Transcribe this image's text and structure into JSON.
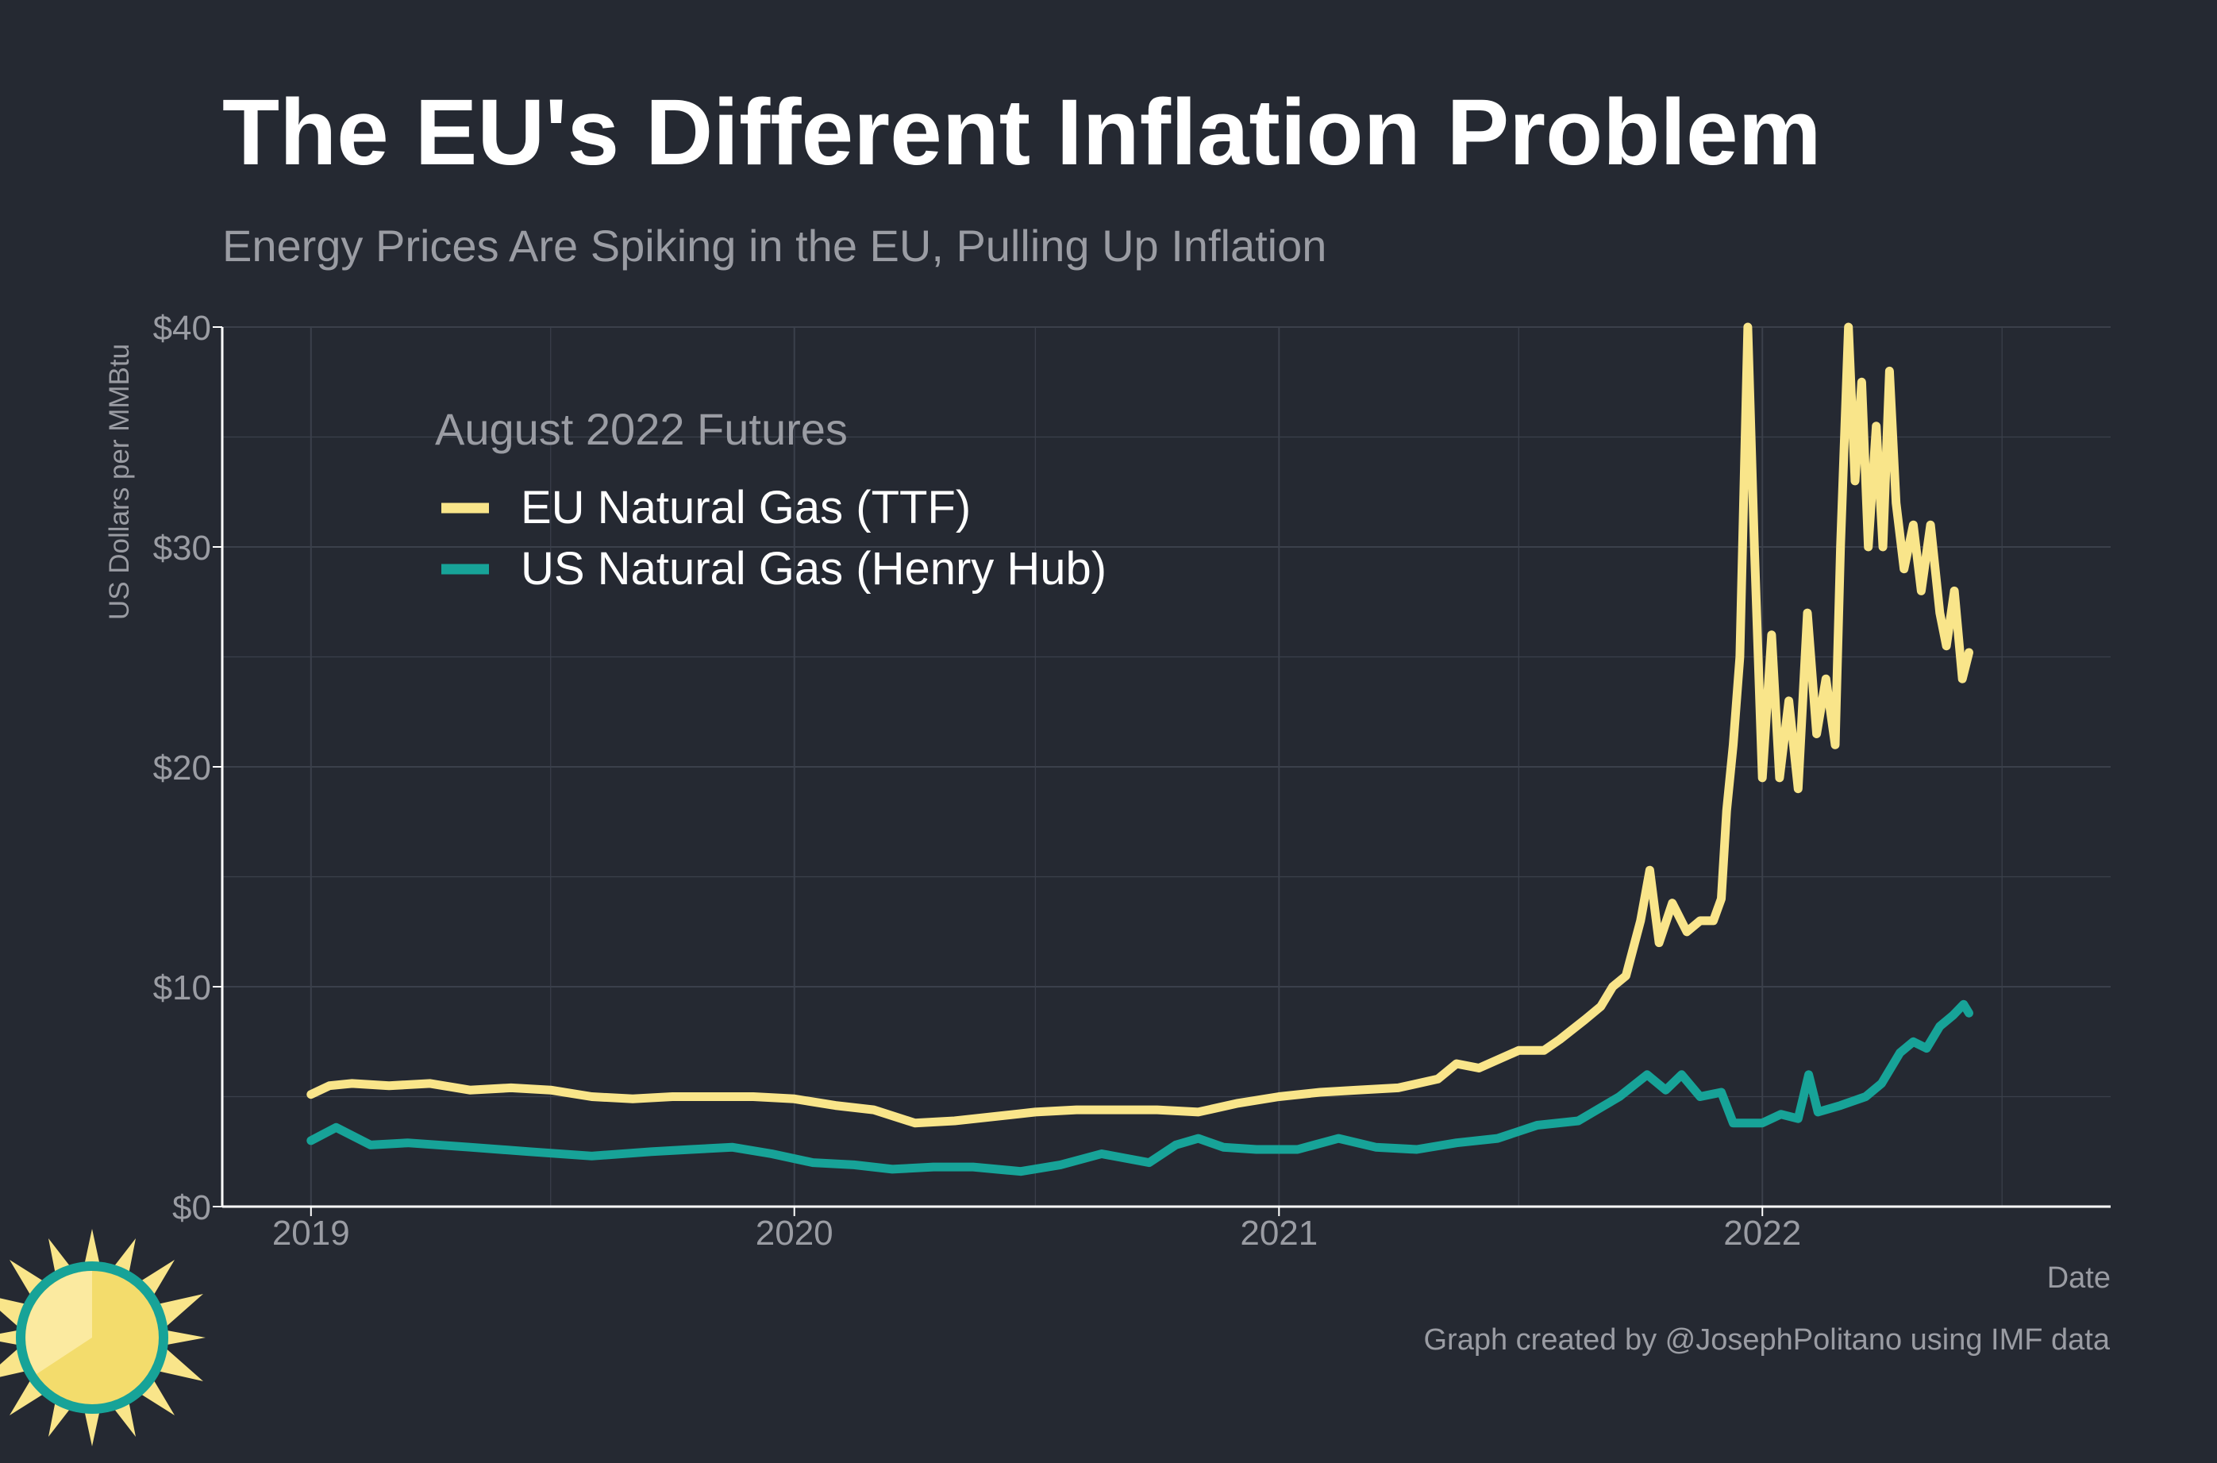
{
  "title": "The EU's Different Inflation Problem",
  "subtitle": "Energy Prices Are Spiking in the EU, Pulling Up Inflation",
  "caption": "Graph created by @JosephPolitano using IMF data",
  "chart_data": {
    "type": "line",
    "title": "The EU's Different Inflation Problem",
    "subtitle": "Energy Prices Are Spiking in the EU, Pulling Up Inflation",
    "xlabel": "Date",
    "ylabel": "US Dollars per MMBtu",
    "xlim": [
      "2018-10-26",
      "2022-09-21"
    ],
    "ylim": [
      0,
      40
    ],
    "x_ticks": [
      "2019",
      "2020",
      "2021",
      "2022"
    ],
    "y_ticks": [
      "$0",
      "$10",
      "$20",
      "$30",
      "$40"
    ],
    "grid": true,
    "legend": {
      "title": "August 2022 Futures",
      "placement": "top-left"
    },
    "colors": {
      "background": "#252932",
      "eu": "#f9e58a",
      "us": "#17a398",
      "grid": "#3b404b",
      "text": "#9a9ca3"
    },
    "series": [
      {
        "name": "EU Natural Gas (TTF)",
        "points": [
          [
            "2019-01-01",
            5.1
          ],
          [
            "2019-01-15",
            5.5
          ],
          [
            "2019-02-01",
            5.6
          ],
          [
            "2019-03-01",
            5.5
          ],
          [
            "2019-04-01",
            5.6
          ],
          [
            "2019-05-01",
            5.3
          ],
          [
            "2019-06-01",
            5.4
          ],
          [
            "2019-07-01",
            5.3
          ],
          [
            "2019-08-01",
            5.0
          ],
          [
            "2019-09-01",
            4.9
          ],
          [
            "2019-10-01",
            5.0
          ],
          [
            "2019-11-01",
            5.0
          ],
          [
            "2019-12-01",
            5.0
          ],
          [
            "2020-01-01",
            4.9
          ],
          [
            "2020-02-01",
            4.6
          ],
          [
            "2020-03-01",
            4.4
          ],
          [
            "2020-04-01",
            3.8
          ],
          [
            "2020-05-01",
            3.9
          ],
          [
            "2020-06-01",
            4.1
          ],
          [
            "2020-07-01",
            4.3
          ],
          [
            "2020-08-01",
            4.4
          ],
          [
            "2020-09-01",
            4.4
          ],
          [
            "2020-10-01",
            4.4
          ],
          [
            "2020-11-01",
            4.3
          ],
          [
            "2020-12-01",
            4.7
          ],
          [
            "2021-01-01",
            5.0
          ],
          [
            "2021-02-01",
            5.2
          ],
          [
            "2021-03-01",
            5.3
          ],
          [
            "2021-04-01",
            5.4
          ],
          [
            "2021-05-01",
            5.8
          ],
          [
            "2021-05-15",
            6.5
          ],
          [
            "2021-06-01",
            6.3
          ],
          [
            "2021-07-01",
            7.1
          ],
          [
            "2021-07-20",
            7.1
          ],
          [
            "2021-08-01",
            7.6
          ],
          [
            "2021-08-20",
            8.5
          ],
          [
            "2021-09-01",
            9.1
          ],
          [
            "2021-09-10",
            10.0
          ],
          [
            "2021-09-20",
            10.5
          ],
          [
            "2021-10-01",
            13.0
          ],
          [
            "2021-10-08",
            15.3
          ],
          [
            "2021-10-15",
            12.0
          ],
          [
            "2021-10-25",
            13.8
          ],
          [
            "2021-11-05",
            12.5
          ],
          [
            "2021-11-15",
            13.0
          ],
          [
            "2021-11-25",
            13.0
          ],
          [
            "2021-12-01",
            14.0
          ],
          [
            "2021-12-05",
            18.0
          ],
          [
            "2021-12-10",
            21.0
          ],
          [
            "2021-12-15",
            25.0
          ],
          [
            "2021-12-21",
            40.0
          ],
          [
            "2021-12-26",
            30.0
          ],
          [
            "2022-01-01",
            19.5
          ],
          [
            "2022-01-08",
            26.0
          ],
          [
            "2022-01-14",
            19.5
          ],
          [
            "2022-01-21",
            23.0
          ],
          [
            "2022-01-28",
            19.0
          ],
          [
            "2022-02-04",
            27.0
          ],
          [
            "2022-02-11",
            21.5
          ],
          [
            "2022-02-18",
            24.0
          ],
          [
            "2022-02-25",
            21.0
          ],
          [
            "2022-03-01",
            30.0
          ],
          [
            "2022-03-07",
            40.0
          ],
          [
            "2022-03-12",
            33.0
          ],
          [
            "2022-03-17",
            37.5
          ],
          [
            "2022-03-22",
            30.0
          ],
          [
            "2022-03-28",
            35.5
          ],
          [
            "2022-04-02",
            30.0
          ],
          [
            "2022-04-07",
            38.0
          ],
          [
            "2022-04-12",
            32.0
          ],
          [
            "2022-04-18",
            29.0
          ],
          [
            "2022-04-25",
            31.0
          ],
          [
            "2022-05-01",
            28.0
          ],
          [
            "2022-05-08",
            31.0
          ],
          [
            "2022-05-15",
            27.0
          ],
          [
            "2022-05-20",
            25.5
          ],
          [
            "2022-05-26",
            28.0
          ],
          [
            "2022-06-01",
            24.0
          ],
          [
            "2022-06-06",
            25.2
          ]
        ]
      },
      {
        "name": "US Natural Gas (Henry Hub)",
        "points": [
          [
            "2019-01-01",
            3.0
          ],
          [
            "2019-01-20",
            3.6
          ],
          [
            "2019-02-15",
            2.8
          ],
          [
            "2019-03-15",
            2.9
          ],
          [
            "2019-05-01",
            2.7
          ],
          [
            "2019-06-15",
            2.5
          ],
          [
            "2019-08-01",
            2.3
          ],
          [
            "2019-09-15",
            2.5
          ],
          [
            "2019-10-15",
            2.6
          ],
          [
            "2019-11-15",
            2.7
          ],
          [
            "2019-12-15",
            2.4
          ],
          [
            "2020-01-15",
            2.0
          ],
          [
            "2020-02-15",
            1.9
          ],
          [
            "2020-03-15",
            1.7
          ],
          [
            "2020-04-15",
            1.8
          ],
          [
            "2020-05-15",
            1.8
          ],
          [
            "2020-06-20",
            1.6
          ],
          [
            "2020-07-20",
            1.9
          ],
          [
            "2020-08-20",
            2.4
          ],
          [
            "2020-09-25",
            2.0
          ],
          [
            "2020-10-15",
            2.8
          ],
          [
            "2020-11-01",
            3.1
          ],
          [
            "2020-11-20",
            2.7
          ],
          [
            "2020-12-15",
            2.6
          ],
          [
            "2021-01-15",
            2.6
          ],
          [
            "2021-02-15",
            3.1
          ],
          [
            "2021-03-15",
            2.7
          ],
          [
            "2021-04-15",
            2.6
          ],
          [
            "2021-05-15",
            2.9
          ],
          [
            "2021-06-15",
            3.1
          ],
          [
            "2021-07-15",
            3.7
          ],
          [
            "2021-08-15",
            3.9
          ],
          [
            "2021-09-15",
            5.0
          ],
          [
            "2021-10-06",
            6.0
          ],
          [
            "2021-10-20",
            5.3
          ],
          [
            "2021-11-01",
            6.0
          ],
          [
            "2021-11-15",
            5.0
          ],
          [
            "2021-12-01",
            5.2
          ],
          [
            "2021-12-10",
            3.8
          ],
          [
            "2022-01-01",
            3.8
          ],
          [
            "2022-01-15",
            4.2
          ],
          [
            "2022-01-28",
            4.0
          ],
          [
            "2022-02-05",
            6.0
          ],
          [
            "2022-02-12",
            4.3
          ],
          [
            "2022-03-01",
            4.6
          ],
          [
            "2022-03-20",
            5.0
          ],
          [
            "2022-04-01",
            5.6
          ],
          [
            "2022-04-15",
            7.0
          ],
          [
            "2022-04-25",
            7.5
          ],
          [
            "2022-05-05",
            7.2
          ],
          [
            "2022-05-15",
            8.2
          ],
          [
            "2022-05-25",
            8.7
          ],
          [
            "2022-06-02",
            9.2
          ],
          [
            "2022-06-06",
            8.8
          ]
        ]
      }
    ]
  }
}
